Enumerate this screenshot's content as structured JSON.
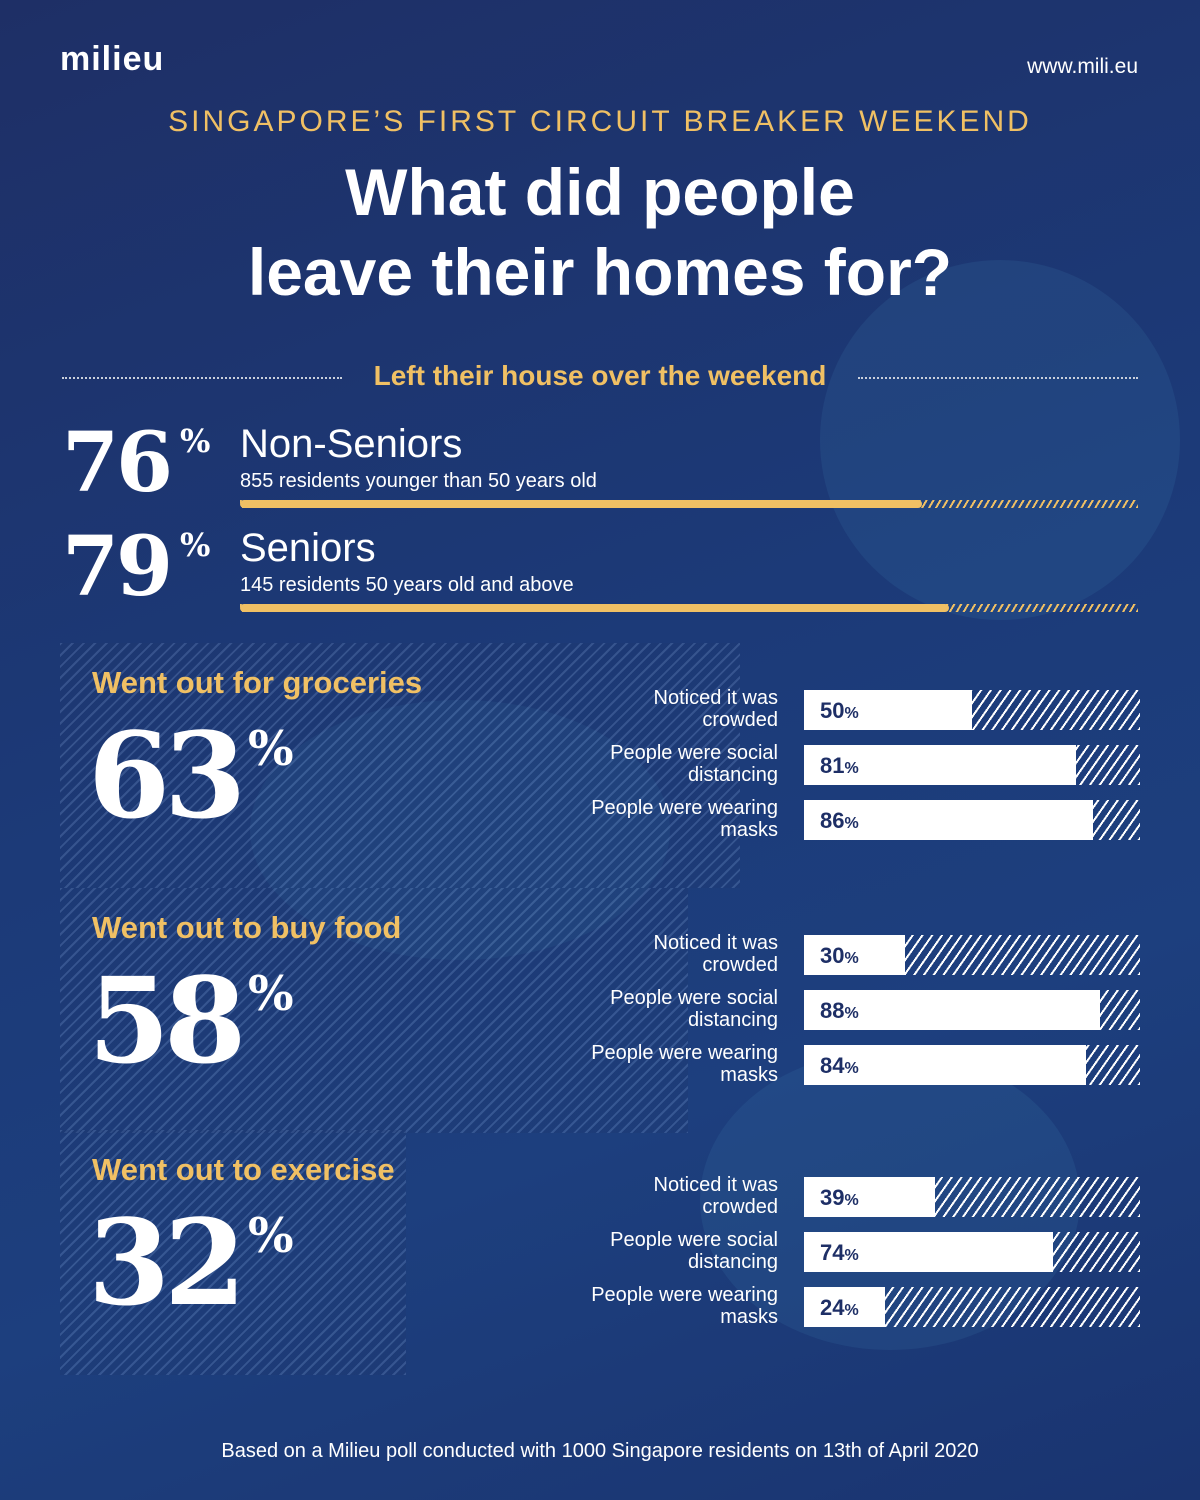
{
  "header": {
    "logo": "milieu",
    "url": "www.mili.eu",
    "kicker": "SINGAPORE’S FIRST CIRCUIT BREAKER WEEKEND",
    "title_line1": "What did people",
    "title_line2": "leave their homes for?"
  },
  "section_label": "Left their house over the weekend",
  "percent_sign": "%",
  "colors": {
    "background": "#1e2f66",
    "accent": "#f0c064",
    "bar": "#ffffff"
  },
  "footer": "Based on a Milieu poll conducted with 1000 Singapore residents on 13th of April 2020",
  "chart_data": [
    {
      "type": "bar",
      "title": "Left their house over the weekend",
      "categories": [
        "Non-Seniors",
        "Seniors"
      ],
      "descriptions": [
        "855 residents younger than 50 years old",
        "145 residents 50 years old and above"
      ],
      "values": [
        76,
        79
      ],
      "display": [
        "76",
        "79"
      ],
      "ylim": [
        0,
        100
      ]
    },
    {
      "type": "bar",
      "activities": [
        {
          "label": "Went out for groceries",
          "value": 63,
          "display": "63",
          "rows": [
            {
              "label": "Noticed it was crowded",
              "value": 50,
              "display": "50"
            },
            {
              "label": "People were social distancing",
              "value": 81,
              "display": "81"
            },
            {
              "label": "People were wearing masks",
              "value": 86,
              "display": "86"
            }
          ]
        },
        {
          "label": "Went out to buy food",
          "value": 58,
          "display": "58",
          "rows": [
            {
              "label": "Noticed it was crowded",
              "value": 30,
              "display": "30"
            },
            {
              "label": "People were social distancing",
              "value": 88,
              "display": "88"
            },
            {
              "label": "People were wearing masks",
              "value": 84,
              "display": "84"
            }
          ]
        },
        {
          "label": "Went out to exercise",
          "value": 32,
          "display": "32",
          "rows": [
            {
              "label": "Noticed it was crowded",
              "value": 39,
              "display": "39"
            },
            {
              "label": "People were social distancing",
              "value": 74,
              "display": "74"
            },
            {
              "label": "People were wearing masks",
              "value": 24,
              "display": "24"
            }
          ]
        }
      ],
      "ylim": [
        0,
        100
      ]
    }
  ]
}
